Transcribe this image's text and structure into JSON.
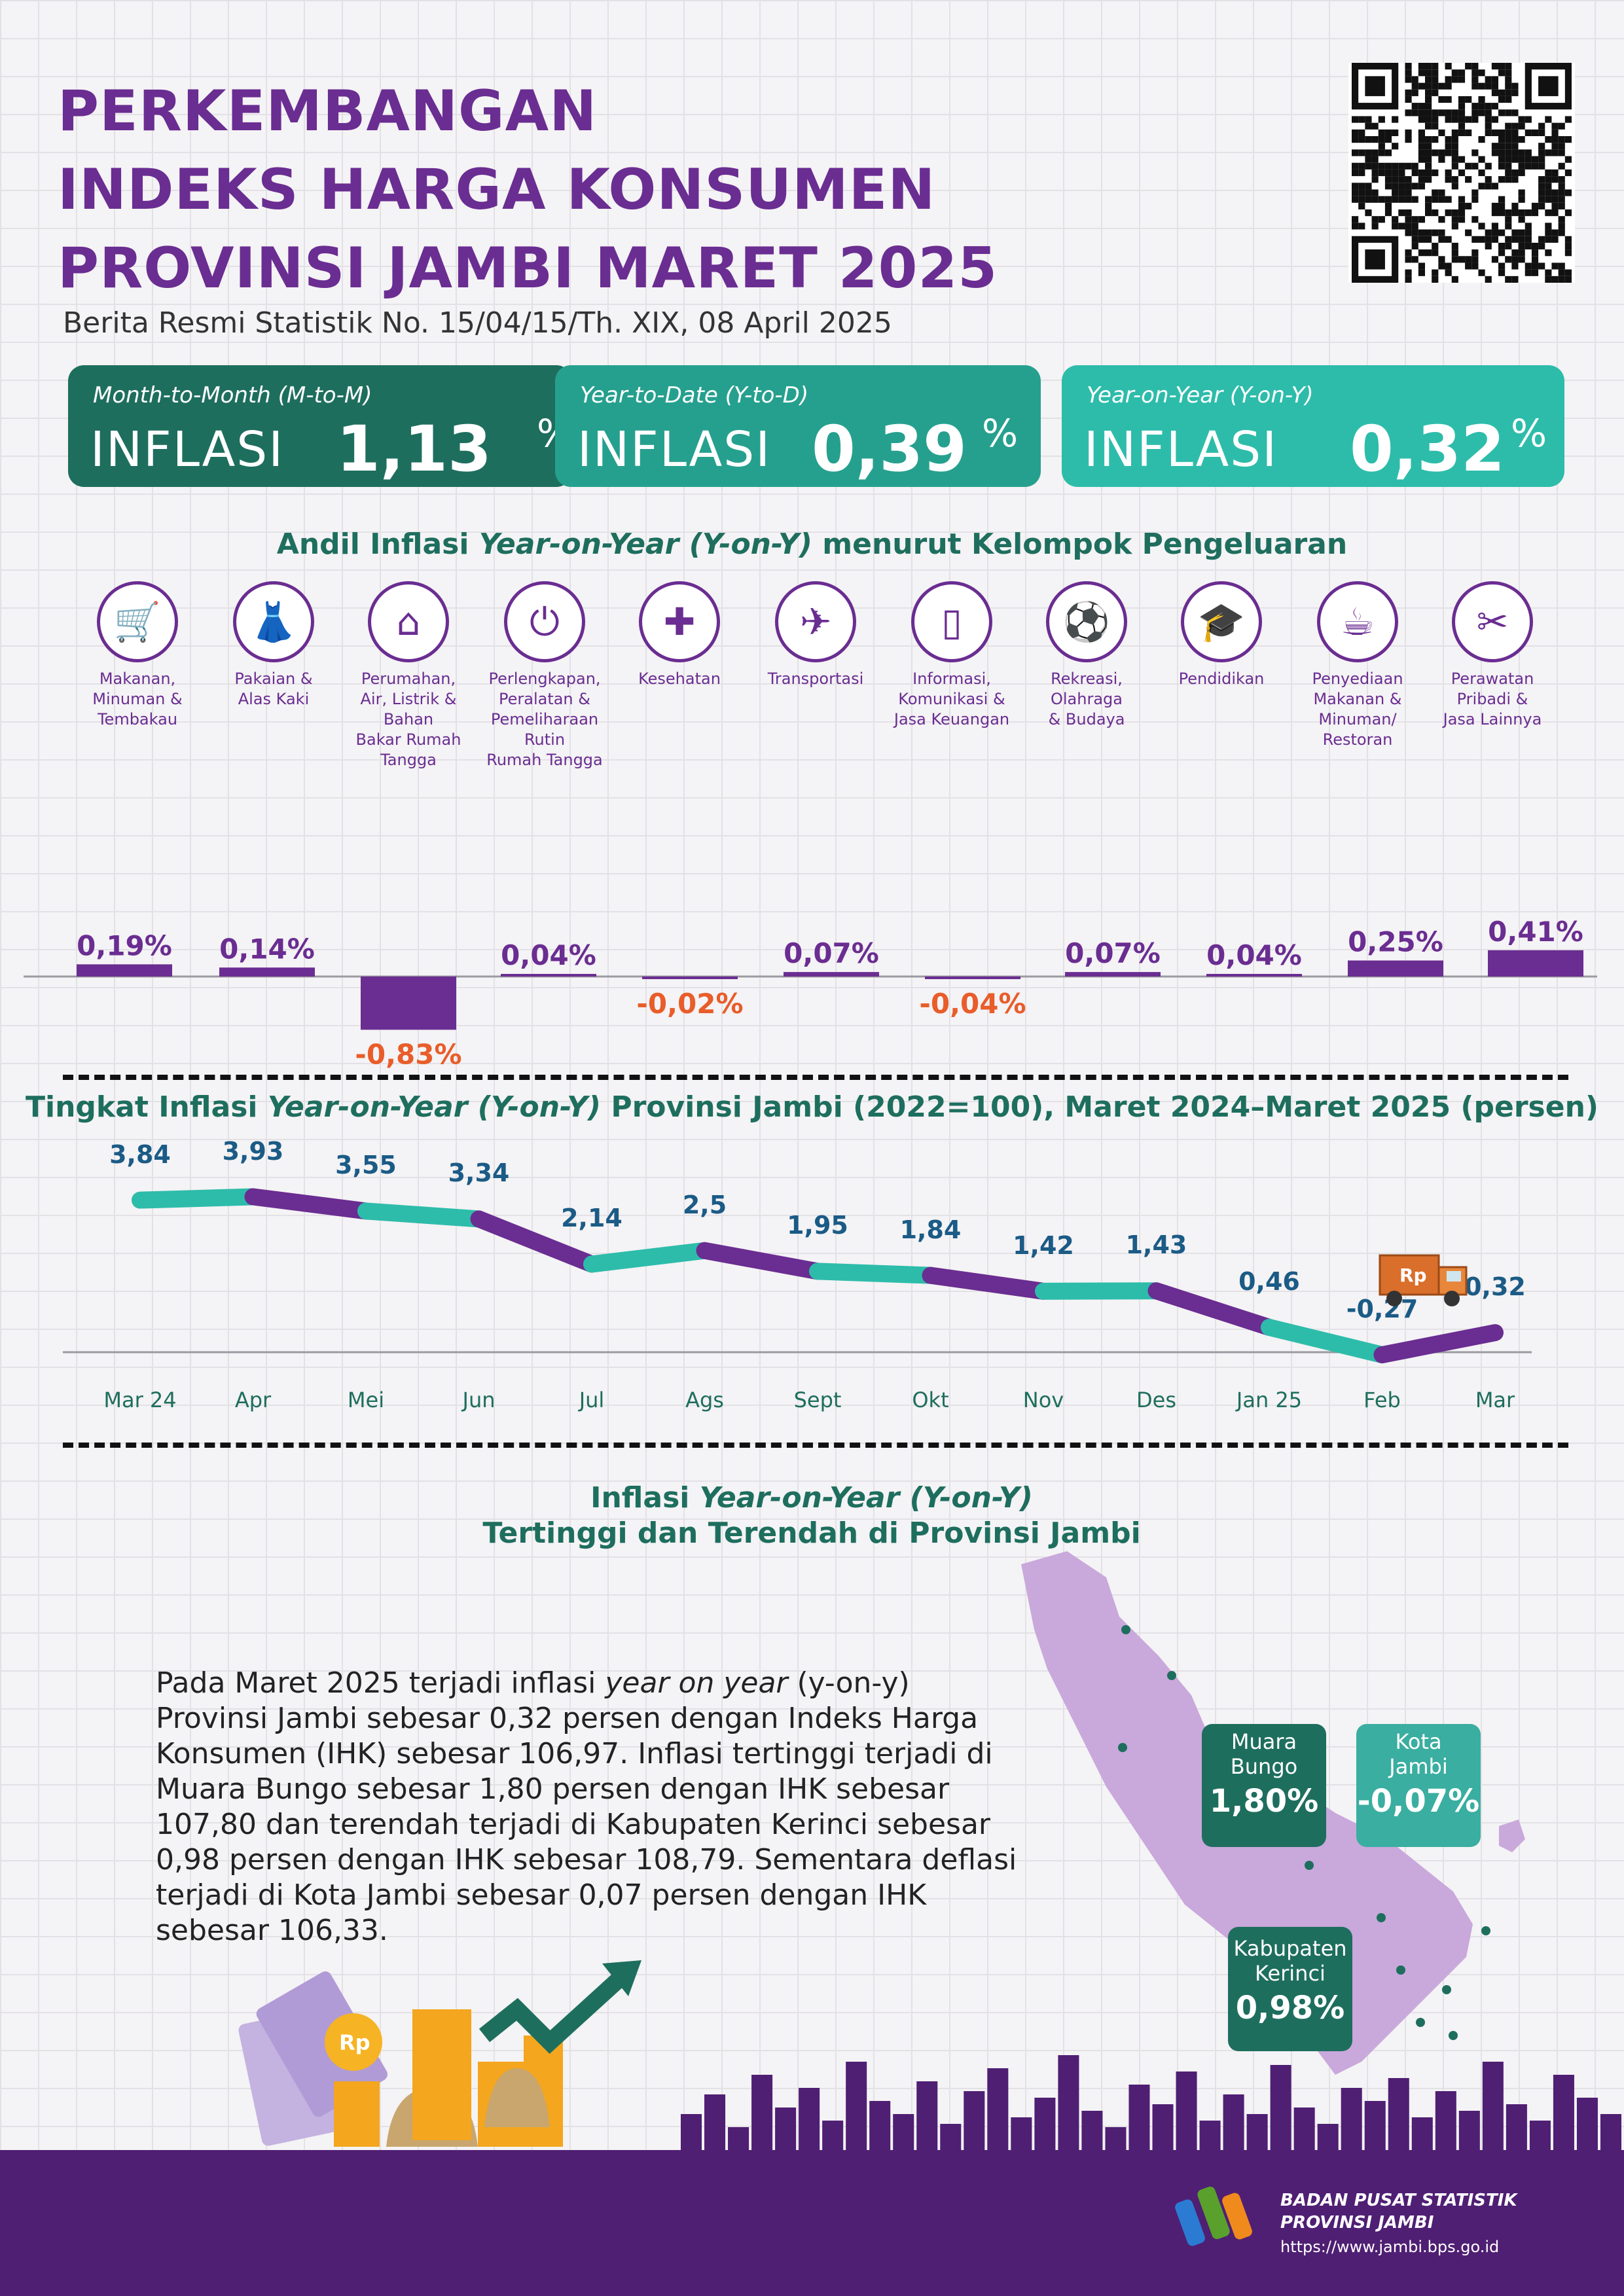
{
  "header": {
    "title_lines": [
      "PERKEMBANGAN",
      "INDEKS HARGA KONSUMEN",
      "PROVINSI JAMBI MARET 2025"
    ],
    "subtitle": "Berita Resmi Statistik No. 15/04/15/Th. XIX, 08 April 2025"
  },
  "inflation_boxes": [
    {
      "label": "Month-to-Month (M-to-M)",
      "word": "INFLASI",
      "value": "1,13",
      "unit": "%",
      "color": "#1e6e5e"
    },
    {
      "label": "Year-to-Date (Y-to-D)",
      "word": "INFLASI",
      "value": "0,39",
      "unit": "%",
      "color": "#26a08e"
    },
    {
      "label": "Year-on-Year (Y-on-Y)",
      "word": "INFLASI",
      "value": "0,32",
      "unit": "%",
      "color": "#2dbcaa"
    }
  ],
  "andil": {
    "title_prefix": "Andil Inflasi ",
    "title_italic": "Year-on-Year (Y-on-Y)",
    "title_suffix": " menurut Kelompok Pengeluaran",
    "categories": [
      {
        "name": "Makanan,\nMinuman &\nTembakau",
        "icon": "food-basket-icon"
      },
      {
        "name": "Pakaian &\nAlas Kaki",
        "icon": "dress-icon"
      },
      {
        "name": "Perumahan,\nAir, Listrik &\nBahan\nBakar Rumah\nTangga",
        "icon": "house-icon"
      },
      {
        "name": "Perlengkapan,\nPeralatan &\nPemeliharaan\nRutin\nRumah Tangga",
        "icon": "plug-icon"
      },
      {
        "name": "Kesehatan",
        "icon": "medical-kit-icon"
      },
      {
        "name": "Transportasi",
        "icon": "airplane-icon"
      },
      {
        "name": "Informasi,\nKomunikasi &\nJasa Keuangan",
        "icon": "smartphone-icon"
      },
      {
        "name": "Rekreasi,\nOlahraga\n& Budaya",
        "icon": "football-player-icon"
      },
      {
        "name": "Pendidikan",
        "icon": "graduation-cap-icon"
      },
      {
        "name": "Penyediaan\nMakanan &\nMinuman/\nRestoran",
        "icon": "burger-drink-icon"
      },
      {
        "name": "Perawatan\nPribadi &\nJasa Lainnya",
        "icon": "scissors-comb-icon"
      }
    ],
    "values": [
      0.19,
      0.14,
      -0.83,
      0.04,
      -0.02,
      0.07,
      -0.04,
      0.07,
      0.04,
      0.25,
      0.41
    ],
    "value_labels": [
      "0,19%",
      "0,14%",
      "-0,83%",
      "0,04%",
      "-0,02%",
      "0,07%",
      "-0,04%",
      "0,07%",
      "0,04%",
      "0,25%",
      "0,41%"
    ],
    "positive_color": "#6a2d91",
    "negative_label_color": "#e85d2a",
    "positive_label_color": "#6a2d91"
  },
  "trend": {
    "title_prefix": "Tingkat Inflasi ",
    "title_italic": "Year-on-Year (Y-on-Y)",
    "title_suffix": " Provinsi Jambi (2022=100), Maret 2024–Maret 2025 (persen)",
    "months": [
      "Mar 24",
      "Apr",
      "Mei",
      "Jun",
      "Jul",
      "Ags",
      "Sept",
      "Okt",
      "Nov",
      "Des",
      "Jan 25",
      "Feb",
      "Mar"
    ],
    "values": [
      3.84,
      3.93,
      3.55,
      3.34,
      2.14,
      2.5,
      1.95,
      1.84,
      1.42,
      1.43,
      0.46,
      -0.27,
      0.32
    ],
    "value_labels": [
      "3,84",
      "3,93",
      "3,55",
      "3,34",
      "2,14",
      "2,5",
      "1,95",
      "1,84",
      "1,42",
      "1,43",
      "0,46",
      "-0,27",
      "0,32"
    ],
    "colors": [
      "#2dbcaa",
      "#6a2d91"
    ],
    "truck_label": "Rp"
  },
  "chart_data": [
    {
      "type": "bar",
      "title": "Andil Inflasi Year-on-Year (Y-on-Y) menurut Kelompok Pengeluaran",
      "categories": [
        "Makanan, Minuman & Tembakau",
        "Pakaian & Alas Kaki",
        "Perumahan, Air, Listrik & Bahan Bakar Rumah Tangga",
        "Perlengkapan, Peralatan & Pemeliharaan Rutin Rumah Tangga",
        "Kesehatan",
        "Transportasi",
        "Informasi, Komunikasi & Jasa Keuangan",
        "Rekreasi, Olahraga & Budaya",
        "Pendidikan",
        "Penyediaan Makanan & Minuman/Restoran",
        "Perawatan Pribadi & Jasa Lainnya"
      ],
      "values": [
        0.19,
        0.14,
        -0.83,
        0.04,
        -0.02,
        0.07,
        -0.04,
        0.07,
        0.04,
        0.25,
        0.41
      ],
      "xlabel": "",
      "ylabel": ""
    },
    {
      "type": "line",
      "title": "Tingkat Inflasi Year-on-Year (Y-on-Y) Provinsi Jambi (2022=100), Maret 2024–Maret 2025 (persen)",
      "x": [
        "Mar 24",
        "Apr",
        "Mei",
        "Jun",
        "Jul",
        "Ags",
        "Sept",
        "Okt",
        "Nov",
        "Des",
        "Jan 25",
        "Feb",
        "Mar"
      ],
      "values": [
        3.84,
        3.93,
        3.55,
        3.34,
        2.14,
        2.5,
        1.95,
        1.84,
        1.42,
        1.43,
        0.46,
        -0.27,
        0.32
      ],
      "xlabel": "",
      "ylabel": ""
    }
  ],
  "map_section": {
    "title_prefix": "Inflasi ",
    "title_italic": "Year-on-Year (Y-on-Y)",
    "title_line2": "Tertinggi dan Terendah di Provinsi Jambi",
    "paragraph_parts": [
      "Pada Maret 2025 terjadi inflasi ",
      "year on year",
      " (y-on-y) Provinsi Jambi sebesar 0,32 persen dengan Indeks Harga Konsumen (IHK) sebesar 106,97. Inflasi tertinggi terjadi di Muara Bungo sebesar 1,80 persen dengan IHK sebesar 107,80 dan terendah terjadi di Kabupaten Kerinci sebesar 0,98 persen dengan IHK sebesar 108,79. Sementara deflasi terjadi di Kota Jambi sebesar 0,07 persen dengan IHK sebesar 106,33."
    ],
    "callouts": [
      {
        "name": "Muara\nBungo",
        "value": "1,80%",
        "color": "#1e6e5e"
      },
      {
        "name": "Kota\nJambi",
        "value": "-0,07%",
        "color": "#3aaea0"
      },
      {
        "name": "Kabupaten\nKerinci",
        "value": "0,98%",
        "color": "#1e6e5e"
      }
    ],
    "map_color": "#c9a8db",
    "coin_label": "Rp"
  },
  "footer": {
    "org_line1": "BADAN PUSAT STATISTIK",
    "org_line2": "PROVINSI JAMBI",
    "url": "https://www.jambi.bps.go.id",
    "color": "#4f1f73"
  }
}
